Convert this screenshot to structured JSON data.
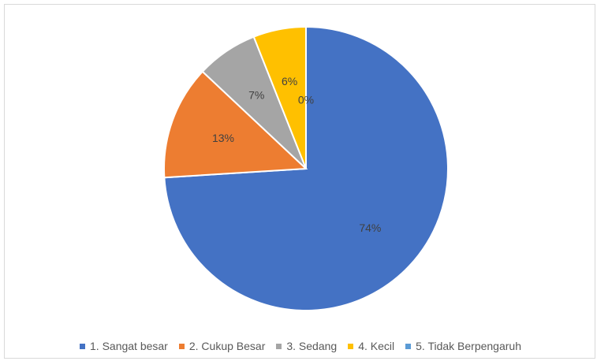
{
  "chart_data": {
    "type": "pie",
    "title": "",
    "categories": [
      "1. Sangat besar",
      "2. Cukup Besar",
      "3. Sedang",
      "4. Kecil",
      "5. Tidak Berpengaruh"
    ],
    "values": [
      74,
      13,
      7,
      6,
      0
    ],
    "labels": [
      "74%",
      "13%",
      "7%",
      "6%",
      "0%"
    ],
    "colors": [
      "#4472C4",
      "#ED7D31",
      "#A5A5A5",
      "#FFC000",
      "#5B9BD5"
    ],
    "legend_position": "bottom",
    "start_angle": "12 o'clock",
    "direction": "clockwise"
  }
}
